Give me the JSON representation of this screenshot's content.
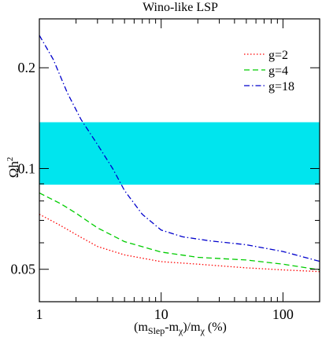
{
  "chart_data": {
    "type": "line",
    "title": "Wino-like LSP",
    "xlabel": {
      "base": "(m",
      "sub1": "Slep",
      "mid1": "-m",
      "sub2": "χ",
      "mid2": ")/m",
      "sub3": "χ",
      "tail": " (%)"
    },
    "ylabel": {
      "base": "Ωh",
      "sup": "2"
    },
    "xscale": "log",
    "yscale": "log",
    "xlim": [
      1,
      200
    ],
    "ylim": [
      0.04,
      0.28
    ],
    "xticks": [
      {
        "v": 1,
        "label": "1"
      },
      {
        "v": 10,
        "label": "10"
      },
      {
        "v": 100,
        "label": "100"
      }
    ],
    "yticks": [
      {
        "v": 0.05,
        "label": "0.05"
      },
      {
        "v": 0.1,
        "label": "0.1"
      },
      {
        "v": 0.2,
        "label": "0.2"
      }
    ],
    "band": {
      "ymin": 0.0895,
      "ymax": 0.1375,
      "color": "#00e5ee"
    },
    "legend_position": "top-right",
    "series": [
      {
        "name": "g=2",
        "color": "#ff0000",
        "dash": "dotted",
        "points": [
          [
            1,
            0.073
          ],
          [
            1.5,
            0.0675
          ],
          [
            2,
            0.0635
          ],
          [
            3,
            0.0585
          ],
          [
            5,
            0.0552
          ],
          [
            10,
            0.0527
          ],
          [
            20,
            0.0518
          ],
          [
            50,
            0.0505
          ],
          [
            100,
            0.0498
          ],
          [
            200,
            0.0492
          ]
        ]
      },
      {
        "name": "g=4",
        "color": "#00cc00",
        "dash": "dashed",
        "points": [
          [
            1,
            0.0845
          ],
          [
            1.5,
            0.0785
          ],
          [
            2,
            0.0735
          ],
          [
            3,
            0.0665
          ],
          [
            5,
            0.0605
          ],
          [
            10,
            0.0563
          ],
          [
            20,
            0.0543
          ],
          [
            50,
            0.0533
          ],
          [
            100,
            0.0518
          ],
          [
            200,
            0.0498
          ]
        ]
      },
      {
        "name": "g=18",
        "color": "#0000cc",
        "dash": "dashdot",
        "points": [
          [
            1,
            0.25
          ],
          [
            1.3,
            0.212
          ],
          [
            1.7,
            0.168
          ],
          [
            2.2,
            0.14
          ],
          [
            3,
            0.118
          ],
          [
            4,
            0.1
          ],
          [
            5,
            0.086
          ],
          [
            7,
            0.073
          ],
          [
            10,
            0.0655
          ],
          [
            15,
            0.0625
          ],
          [
            25,
            0.0608
          ],
          [
            50,
            0.0592
          ],
          [
            100,
            0.0565
          ],
          [
            200,
            0.0528
          ]
        ]
      }
    ]
  }
}
